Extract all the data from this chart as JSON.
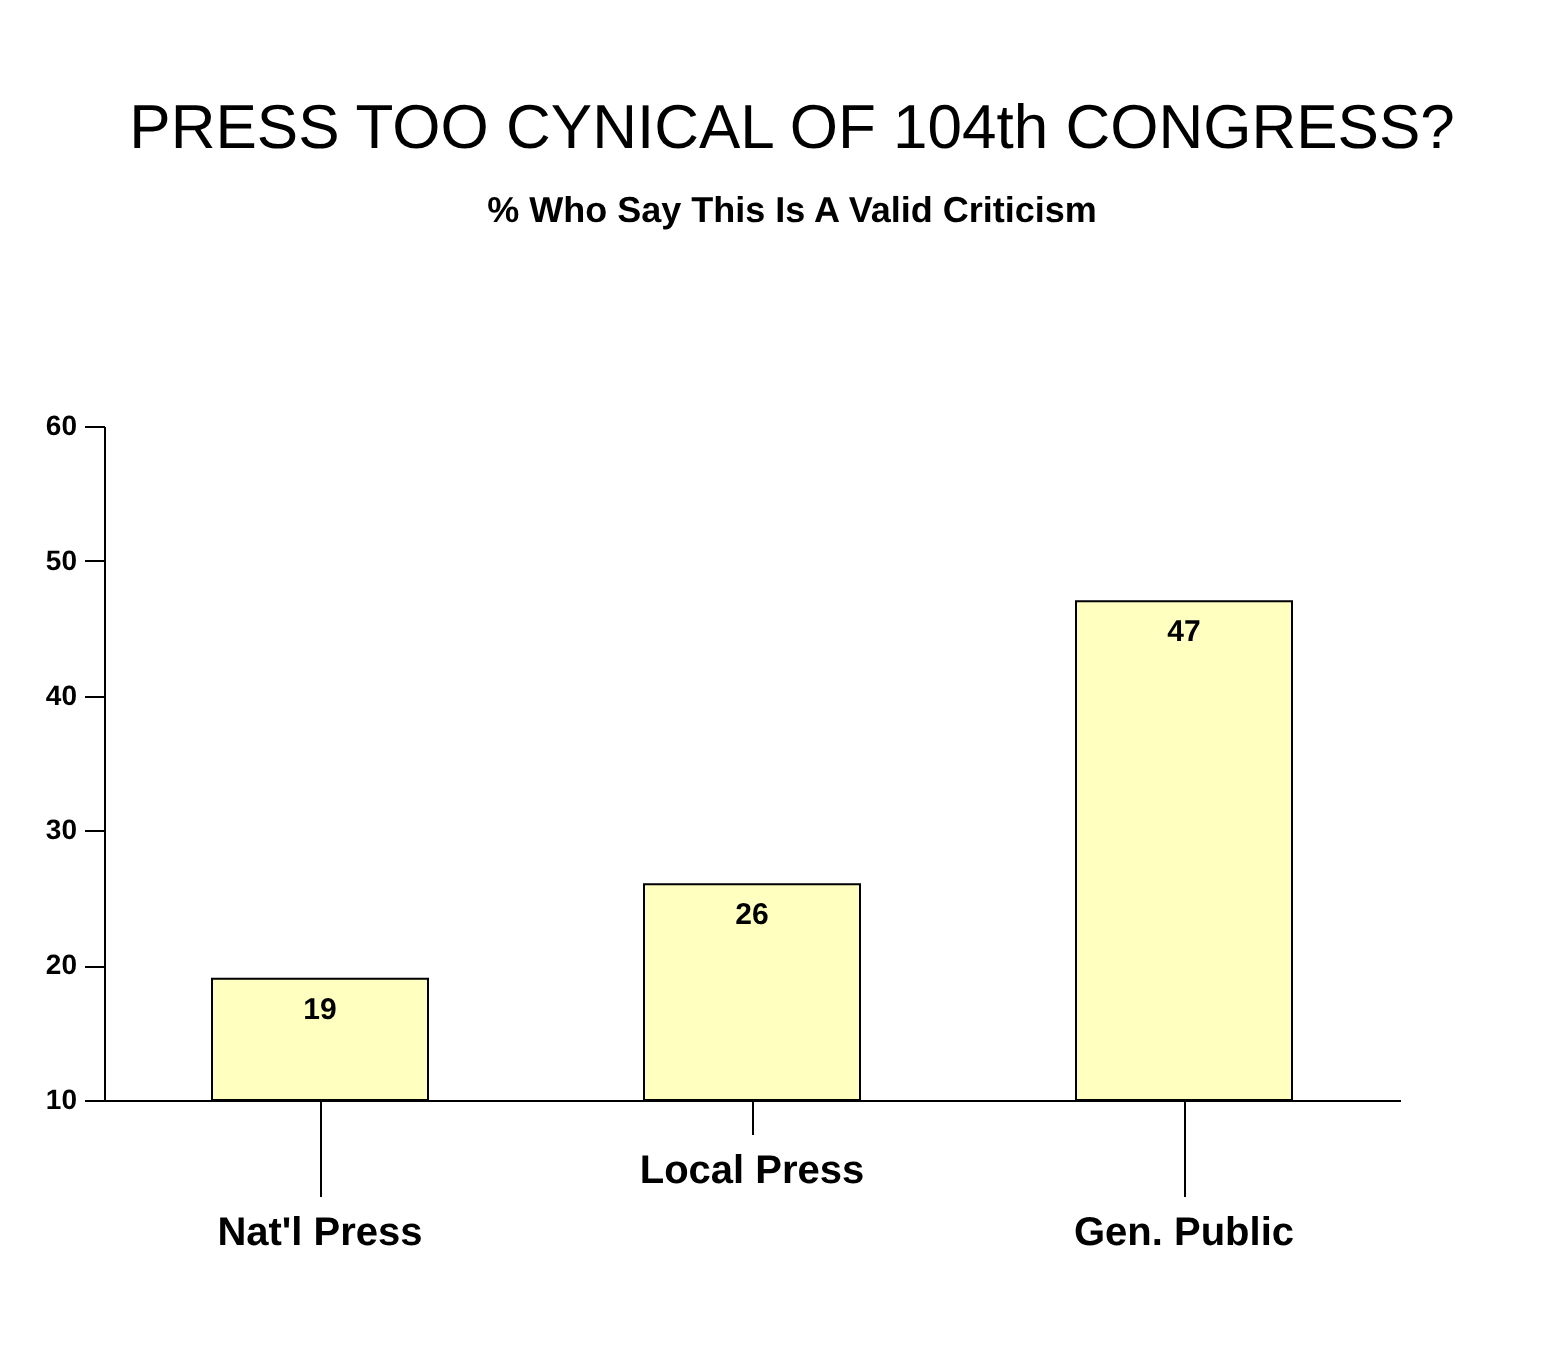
{
  "chart_data": {
    "type": "bar",
    "title": "PRESS TOO CYNICAL OF 104th CONGRESS?",
    "subtitle": "% Who Say This Is A Valid Criticism",
    "categories": [
      "Nat'l Press",
      "Local Press",
      "Gen. Public"
    ],
    "values": [
      19,
      26,
      47
    ],
    "color": "#ffffc0",
    "ylim": [
      10,
      60
    ],
    "yticks": [
      10,
      20,
      30,
      40,
      50,
      60
    ],
    "data_labels": true
  }
}
